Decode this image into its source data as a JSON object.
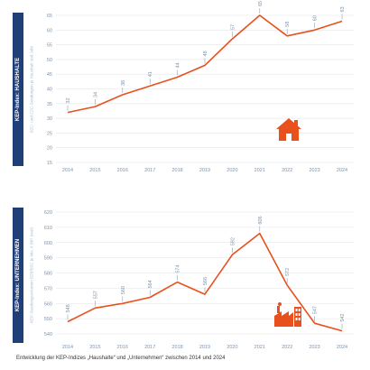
{
  "caption": "Entwicklung der KEP-Indizes „Haushalte“ und „Unternehmen“ zwischen 2014 und 2024",
  "colors": {
    "line": "#e8501e",
    "tab": "#1f3f78",
    "tick_text": "#7a93b0",
    "grid": "#e3e3e3"
  },
  "chart_data": [
    {
      "type": "line",
      "title": "KEP-Index: HAUSHALTE",
      "ylabel": "B2C- und C2C-Sendungen je Haushalt und Jahr",
      "x": [
        "2014",
        "2015",
        "2016",
        "2017",
        "2018",
        "2019",
        "2020",
        "2021",
        "2022",
        "2023",
        "2024"
      ],
      "values": [
        32,
        34,
        38,
        41,
        44,
        48,
        57,
        65,
        58,
        60,
        63
      ],
      "ylim": [
        15,
        65
      ],
      "yticks": [
        "65",
        "60",
        "55",
        "50",
        "45",
        "40",
        "35",
        "30",
        "25",
        "20",
        "15"
      ],
      "grid": true,
      "icon": "house-icon"
    },
    {
      "type": "line",
      "title": "KEP-Index: UNTERNEHMEN",
      "ylabel": "KEP-Sendungsvolumen B2B/B2C je Mio. € BIP (real)",
      "x": [
        "2014",
        "2015",
        "2016",
        "2017",
        "2018",
        "2019",
        "2020",
        "2021",
        "2022",
        "2023",
        "2024"
      ],
      "values": [
        548,
        557,
        560,
        564,
        574,
        566,
        592,
        606,
        572,
        547,
        542
      ],
      "ylim": [
        540,
        620
      ],
      "yticks": [
        "620",
        "610",
        "600",
        "590",
        "580",
        "570",
        "560",
        "550",
        "540"
      ],
      "grid": true,
      "icon": "factory-icon"
    }
  ]
}
